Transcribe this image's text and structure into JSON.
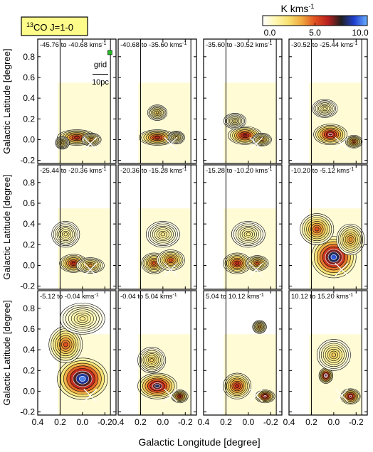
{
  "chart_data": {
    "type": "heatmap",
    "figure_label": {
      "mol": "13",
      "rest": "CO J=1-0"
    },
    "colorbar": {
      "unit": "K kms",
      "unit_exp": "-1",
      "range": [
        0.0,
        10.0
      ],
      "ticks": [
        "0.0",
        "5.0",
        "10.0"
      ],
      "colors": [
        "#ffffff",
        "#fff7b0",
        "#f8e070",
        "#f0a840",
        "#e05020",
        "#b82020",
        "#202020",
        "#2040d0",
        "#6ab0ff"
      ]
    },
    "xlabel": "Galactic Longitude [degree]",
    "ylabel": "Galactic Latitude [degree]",
    "xlim": [
      0.4,
      -0.3
    ],
    "ylim": [
      -0.23,
      0.97
    ],
    "x_ticks": [
      0.4,
      0.2,
      0.0,
      -0.2
    ],
    "x_tick_labels": [
      "0.4",
      "0.2",
      "0.0",
      "-0.2"
    ],
    "y_ticks": [
      0.8,
      0.6,
      0.4,
      0.2,
      0.0,
      -0.2
    ],
    "y_tick_labels": [
      "0.8",
      "0.6",
      "0.4",
      "0.2",
      "0.0",
      "-0.2"
    ],
    "panel_vmin": [
      -45.76,
      -40.68,
      -35.6,
      -30.52,
      -25.44,
      -20.36,
      -15.28,
      -10.2,
      -5.12,
      -0.04,
      5.04,
      10.12
    ],
    "panels": [
      {
        "label": "-45.76 to  -40.68 kms",
        "peak": 6.0,
        "clumps": [
          [
            0.05,
            0.02,
            0.14,
            0.06,
            6.0
          ],
          [
            -0.08,
            0.0,
            0.07,
            0.05,
            4.0
          ],
          [
            0.18,
            -0.03,
            0.05,
            0.05,
            3.0
          ]
        ]
      },
      {
        "label": "-40.68 to  -35.60 kms",
        "peak": 6.0,
        "clumps": [
          [
            0.05,
            0.02,
            0.13,
            0.06,
            6.0
          ],
          [
            0.05,
            0.26,
            0.07,
            0.06,
            3.0
          ],
          [
            -0.12,
            0.02,
            0.06,
            0.05,
            3.0
          ]
        ]
      },
      {
        "label": "-35.60 to  -30.52 kms",
        "peak": 6.5,
        "clumps": [
          [
            0.03,
            0.04,
            0.12,
            0.07,
            6.5
          ],
          [
            -0.12,
            0.0,
            0.07,
            0.05,
            4.0
          ],
          [
            0.12,
            0.18,
            0.08,
            0.06,
            2.0
          ]
        ]
      },
      {
        "label": "-30.52 to  -25.44 kms",
        "peak": 7.0,
        "clumps": [
          [
            0.03,
            0.05,
            0.12,
            0.08,
            7.0
          ],
          [
            -0.18,
            -0.02,
            0.06,
            0.05,
            5.0
          ],
          [
            0.08,
            0.3,
            0.09,
            0.07,
            2.0
          ]
        ]
      },
      {
        "label": "-25.44 to  -20.36 kms",
        "peak": 6.0,
        "clumps": [
          [
            0.08,
            0.02,
            0.1,
            0.07,
            6.0
          ],
          [
            -0.07,
            0.0,
            0.1,
            0.06,
            4.0
          ],
          [
            0.15,
            0.3,
            0.1,
            0.1,
            2.0
          ]
        ]
      },
      {
        "label": "-20.36 to  -15.28 kms",
        "peak": 6.0,
        "clumps": [
          [
            0.08,
            0.02,
            0.09,
            0.08,
            5.0
          ],
          [
            -0.07,
            0.05,
            0.1,
            0.08,
            5.0
          ],
          [
            0.0,
            0.3,
            0.12,
            0.1,
            2.0
          ]
        ]
      },
      {
        "label": "-15.28 to  -10.20 kms",
        "peak": 6.5,
        "clumps": [
          [
            0.1,
            0.02,
            0.1,
            0.08,
            6.0
          ],
          [
            -0.08,
            0.02,
            0.08,
            0.06,
            5.0
          ],
          [
            0.0,
            0.3,
            0.12,
            0.1,
            2.0
          ]
        ]
      },
      {
        "label": "-10.20 to  -5.12 kms",
        "peak": 9.0,
        "clumps": [
          [
            0.0,
            0.08,
            0.16,
            0.16,
            9.0
          ],
          [
            0.15,
            0.35,
            0.12,
            0.12,
            5.0
          ],
          [
            -0.15,
            0.25,
            0.1,
            0.12,
            4.0
          ]
        ]
      },
      {
        "label": "-5.12 to  -0.04 kms",
        "peak": 9.5,
        "clumps": [
          [
            0.0,
            0.12,
            0.18,
            0.16,
            9.5
          ],
          [
            0.15,
            0.45,
            0.12,
            0.14,
            5.0
          ],
          [
            0.0,
            0.7,
            0.16,
            0.12,
            2.0
          ]
        ]
      },
      {
        "label": "-0.04 to  5.04 kms",
        "peak": 8.0,
        "clumps": [
          [
            0.05,
            0.05,
            0.14,
            0.1,
            8.0
          ],
          [
            -0.15,
            -0.05,
            0.06,
            0.05,
            6.0
          ],
          [
            0.1,
            0.3,
            0.1,
            0.1,
            3.0
          ]
        ]
      },
      {
        "label": "5.04 to  10.12 kms",
        "peak": 8.0,
        "clumps": [
          [
            0.1,
            0.05,
            0.1,
            0.1,
            6.0
          ],
          [
            -0.15,
            -0.05,
            0.07,
            0.05,
            7.0
          ],
          [
            -0.1,
            0.62,
            0.05,
            0.05,
            4.0
          ]
        ]
      },
      {
        "label": "10.12 to  15.20 kms",
        "peak": 8.0,
        "clumps": [
          [
            0.07,
            0.15,
            0.05,
            0.06,
            8.0
          ],
          [
            -0.15,
            -0.05,
            0.07,
            0.06,
            7.0
          ],
          [
            0.0,
            0.35,
            0.12,
            0.12,
            3.0
          ]
        ]
      }
    ],
    "annotation": {
      "grid_label": "grid",
      "scale_label": "10pc"
    }
  }
}
